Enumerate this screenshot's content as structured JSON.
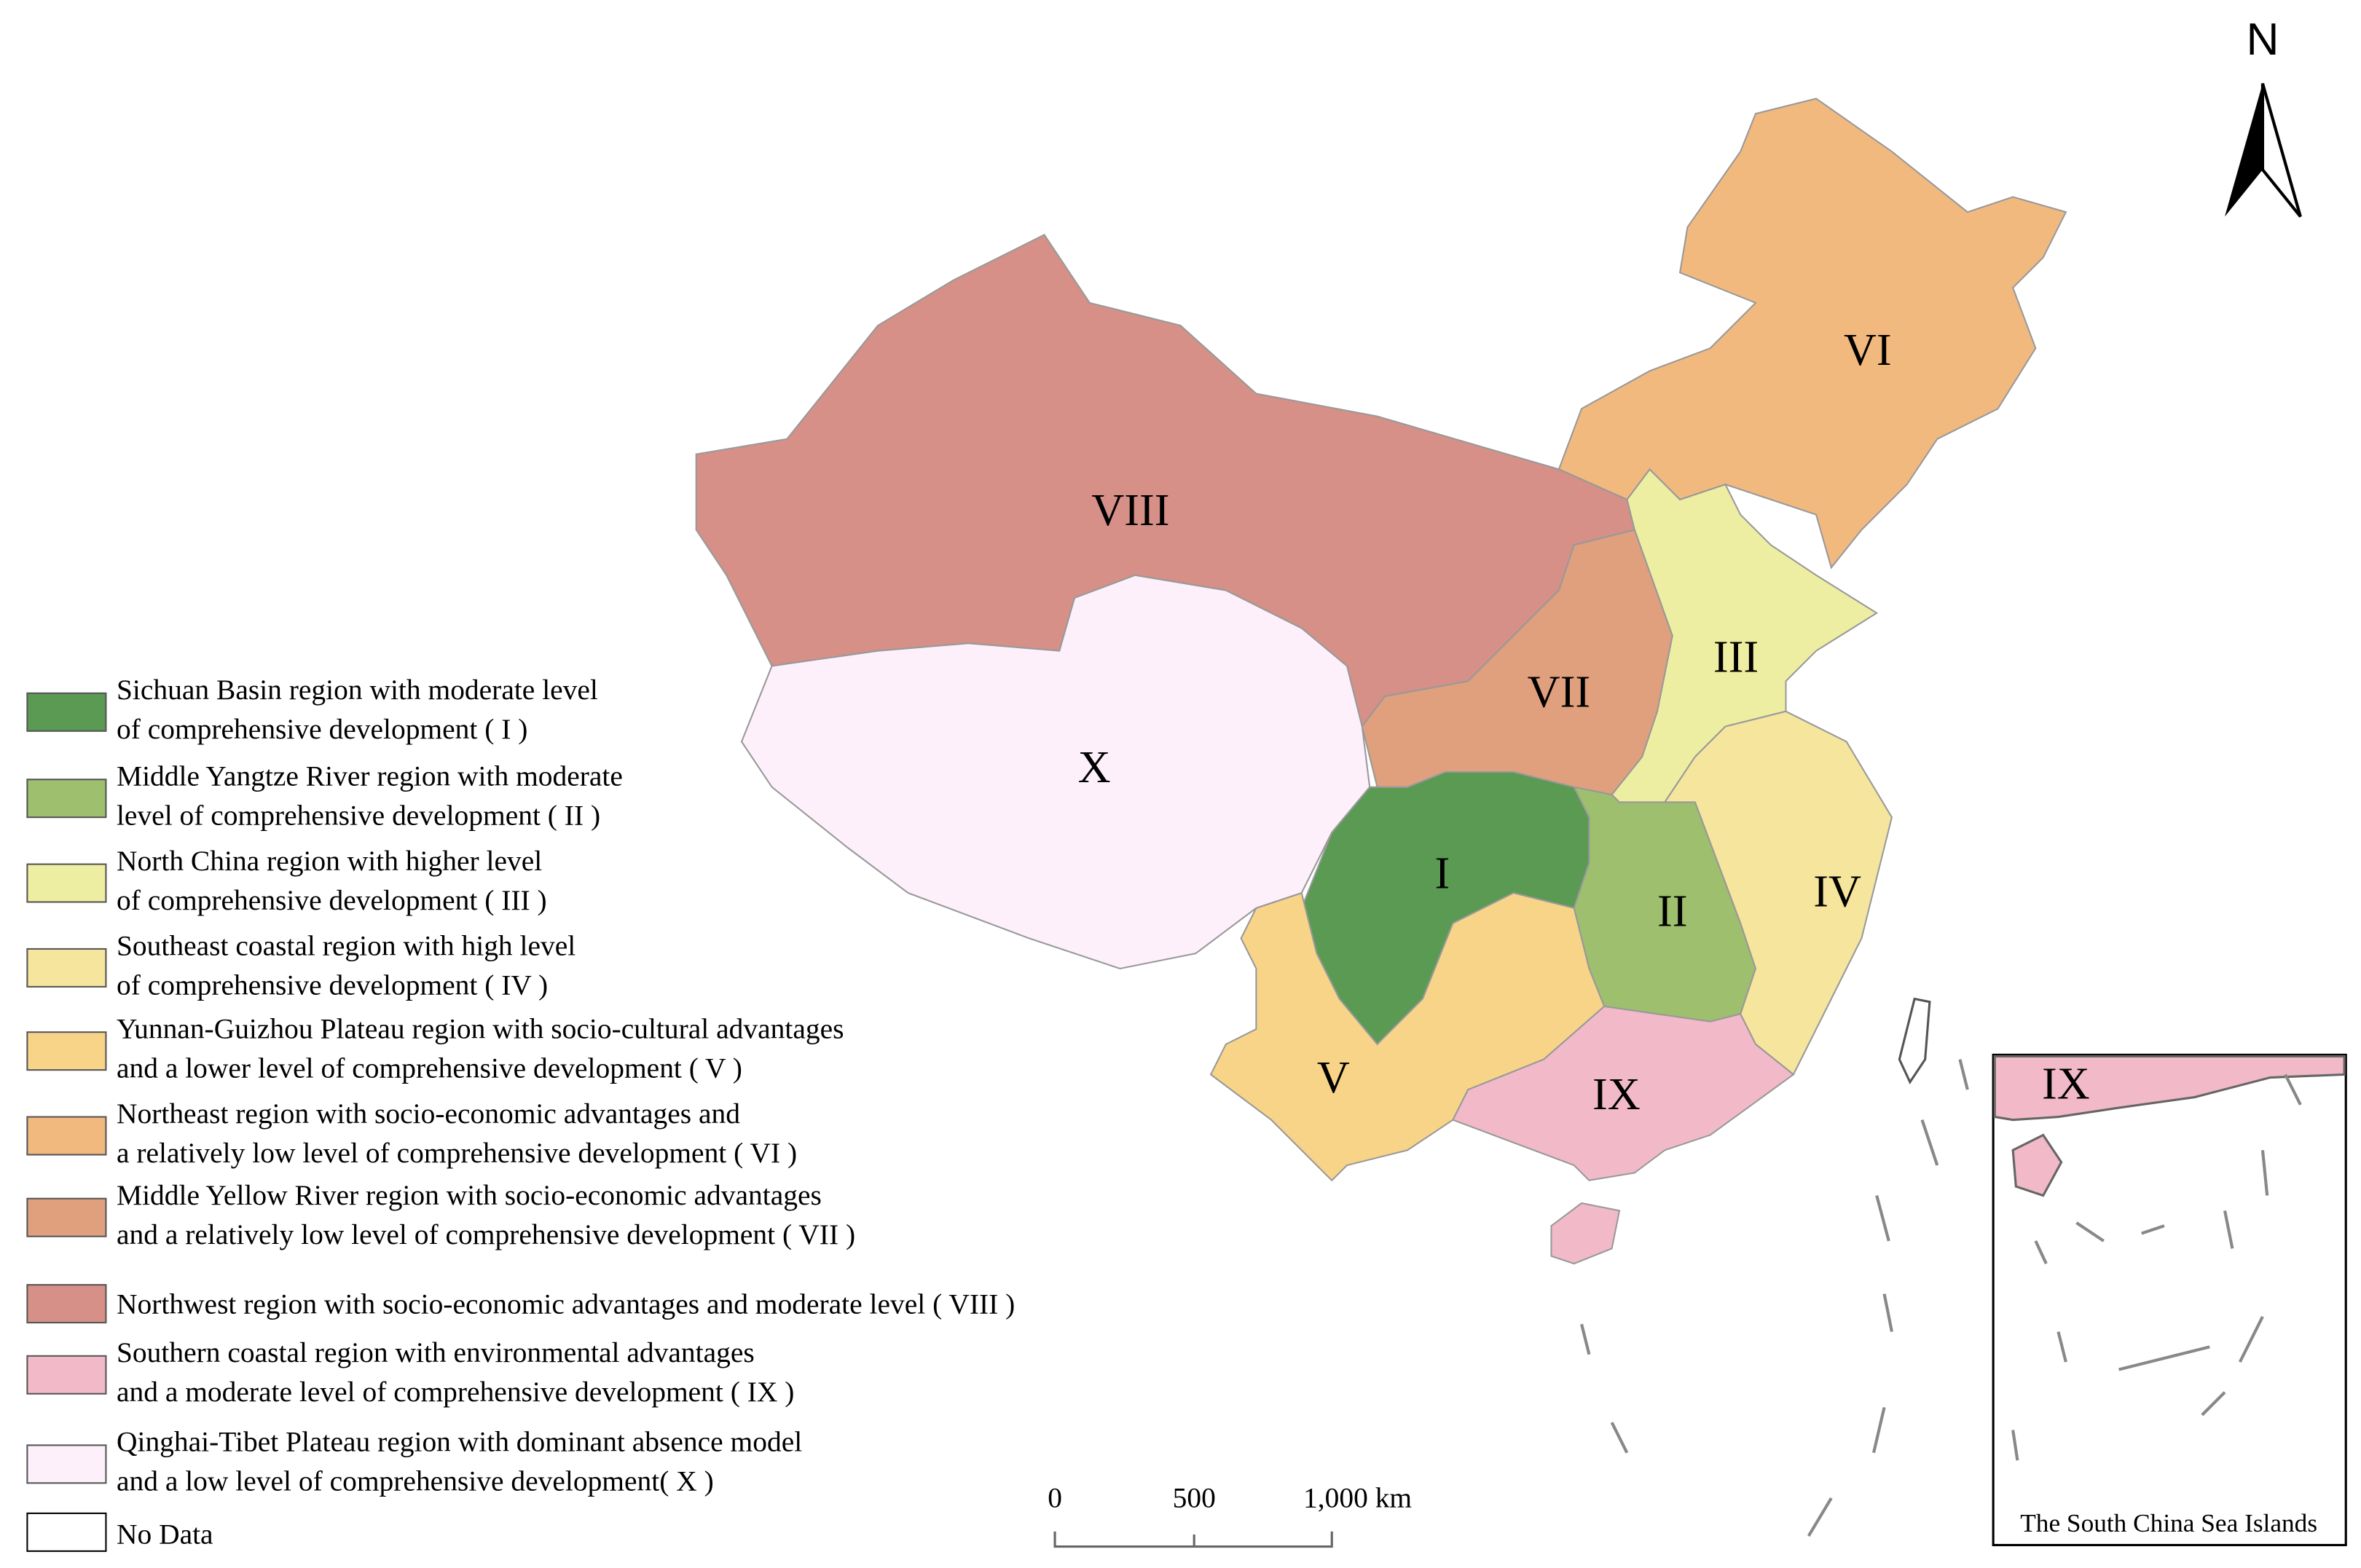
{
  "north": "N",
  "regions": [
    {
      "label": "I"
    },
    {
      "label": "II"
    },
    {
      "label": "III"
    },
    {
      "label": "IV"
    },
    {
      "label": "V"
    },
    {
      "label": "VI"
    },
    {
      "label": "VII"
    },
    {
      "label": "VIII"
    },
    {
      "label": "IX"
    },
    {
      "label": "X"
    }
  ],
  "legend": [
    {
      "lines": [
        "Sichuan Basin region with moderate level",
        "of comprehensive development ( I )"
      ],
      "color": "#5a9a52"
    },
    {
      "lines": [
        "Middle Yangtze River region with moderate",
        "level of comprehensive development ( II )"
      ],
      "color": "#9dbf6e"
    },
    {
      "lines": [
        "North China region with higher level",
        "of comprehensive development ( III )"
      ],
      "color": "#eeeea2"
    },
    {
      "lines": [
        "Southeast coastal region with high level",
        "of comprehensive development ( IV )"
      ],
      "color": "#f6e59c"
    },
    {
      "lines": [
        "Yunnan-Guizhou Plateau region with socio-cultural advantages",
        "and a lower level of comprehensive development ( V )"
      ],
      "color": "#f8d488"
    },
    {
      "lines": [
        "Northeast region with socio-economic advantages and",
        "a relatively low level of comprehensive development ( VI )"
      ],
      "color": "#f2b97f"
    },
    {
      "lines": [
        "Middle Yellow River region with socio-economic advantages",
        "and a relatively low level of comprehensive development ( VII )"
      ],
      "color": "#e0a07e"
    },
    {
      "lines": [
        "Northwest region with socio-economic advantages and moderate level ( VIII )"
      ],
      "color": "#d69087"
    },
    {
      "lines": [
        "Southern coastal region with environmental advantages",
        "and a moderate level of comprehensive development ( IX )"
      ],
      "color": "#f2bac8"
    },
    {
      "lines": [
        "Qinghai-Tibet Plateau region with dominant absence model",
        "and a low level of comprehensive development( X )"
      ],
      "color": "#fdf0fb"
    }
  ],
  "no_data": {
    "label": "No Data",
    "color": "#ffffff"
  },
  "scale_bar": [
    "0",
    "500",
    "1,000 km"
  ],
  "inset": {
    "label": "IX",
    "caption": "The South China Sea Islands"
  }
}
